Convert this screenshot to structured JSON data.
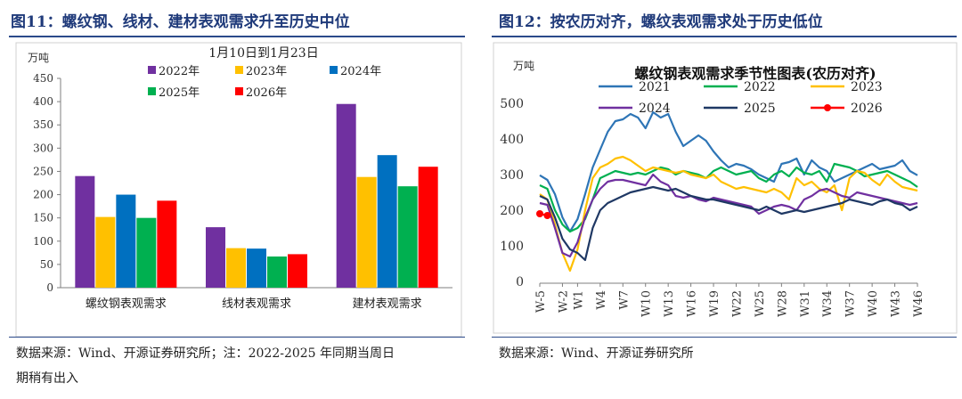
{
  "left_panel": {
    "figure_title": "图11：螺纹钢、线材、建材表观需求升至历史中位",
    "source_line1": "数据来源：Wind、开源证券研究所；注：2022-2025 年同期当周日",
    "source_line2": "期稍有出入"
  },
  "right_panel": {
    "figure_title": "图12：按农历对齐，螺纹表观需求处于历史低位",
    "source": "数据来源：Wind、开源证券研究所"
  },
  "chart_data": [
    {
      "type": "bar",
      "title": "1月10日到1月23日",
      "ylabel": "万吨",
      "ylim": [
        0,
        450
      ],
      "yticks": [
        0,
        50,
        100,
        150,
        200,
        250,
        300,
        350,
        400,
        450
      ],
      "categories": [
        "螺纹钢表观需求",
        "线材表观需求",
        "建材表观需求"
      ],
      "series": [
        {
          "name": "2022年",
          "color": "#7030a0",
          "values": [
            240,
            130,
            395
          ]
        },
        {
          "name": "2023年",
          "color": "#ffc000",
          "values": [
            152,
            85,
            238
          ]
        },
        {
          "name": "2024年",
          "color": "#0070c0",
          "values": [
            200,
            84,
            285
          ]
        },
        {
          "name": "2025年",
          "color": "#00b050",
          "values": [
            150,
            67,
            218
          ]
        },
        {
          "name": "2026年",
          "color": "#ff0000",
          "values": [
            187,
            72,
            260
          ]
        }
      ]
    },
    {
      "type": "line",
      "title": "螺纹钢表观需求季节性图表(农历对齐)",
      "ylabel": "万吨",
      "ylim": [
        0,
        500
      ],
      "yticks": [
        0,
        100,
        200,
        300,
        400,
        500
      ],
      "x": [
        "W-5",
        "W-4",
        "W-3",
        "W-2",
        "W-1",
        "W1",
        "W2",
        "W3",
        "W4",
        "W5",
        "W6",
        "W7",
        "W8",
        "W9",
        "W10",
        "W11",
        "W12",
        "W13",
        "W14",
        "W15",
        "W16",
        "W17",
        "W18",
        "W19",
        "W20",
        "W21",
        "W22",
        "W23",
        "W24",
        "W25",
        "W26",
        "W27",
        "W28",
        "W29",
        "W30",
        "W31",
        "W32",
        "W33",
        "W34",
        "W35",
        "W36",
        "W37",
        "W38",
        "W39",
        "W40",
        "W41",
        "W42",
        "W43",
        "W44",
        "W45",
        "W46"
      ],
      "xticks": [
        "W-5",
        "W-2",
        "W1",
        "W4",
        "W7",
        "W10",
        "W13",
        "W16",
        "W19",
        "W22",
        "W25",
        "W28",
        "W31",
        "W34",
        "W37",
        "W40",
        "W43",
        "W46"
      ],
      "series": [
        {
          "name": "2021",
          "color": "#2e75b6",
          "values": [
            298,
            285,
            245,
            180,
            140,
            175,
            245,
            320,
            370,
            420,
            450,
            455,
            470,
            460,
            430,
            475,
            460,
            470,
            420,
            380,
            395,
            410,
            395,
            365,
            340,
            320,
            330,
            325,
            315,
            300,
            290,
            280,
            330,
            335,
            345,
            300,
            340,
            320,
            310,
            280,
            290,
            300,
            310,
            320,
            330,
            315,
            320,
            325,
            340,
            310,
            298
          ]
        },
        {
          "name": "2022",
          "color": "#00b050",
          "values": [
            270,
            260,
            200,
            160,
            140,
            150,
            175,
            230,
            290,
            300,
            310,
            305,
            300,
            305,
            300,
            310,
            320,
            315,
            300,
            310,
            305,
            300,
            290,
            310,
            320,
            310,
            300,
            305,
            310,
            290,
            280,
            300,
            310,
            295,
            320,
            305,
            300,
            310,
            280,
            330,
            325,
            320,
            310,
            295,
            300,
            305,
            310,
            300,
            290,
            280,
            265
          ]
        },
        {
          "name": "2023",
          "color": "#ffc000",
          "values": [
            245,
            230,
            160,
            80,
            30,
            90,
            200,
            290,
            320,
            330,
            345,
            350,
            340,
            325,
            310,
            320,
            315,
            310,
            305,
            310,
            300,
            295,
            290,
            300,
            280,
            270,
            260,
            265,
            260,
            255,
            250,
            260,
            250,
            230,
            290,
            270,
            280,
            260,
            250,
            270,
            200,
            290,
            310,
            305,
            285,
            270,
            300,
            280,
            265,
            260,
            255
          ]
        },
        {
          "name": "2024",
          "color": "#7030a0",
          "values": [
            220,
            215,
            150,
            80,
            70,
            110,
            180,
            230,
            260,
            280,
            285,
            285,
            280,
            275,
            270,
            300,
            280,
            270,
            240,
            235,
            240,
            230,
            225,
            235,
            230,
            225,
            220,
            215,
            210,
            190,
            200,
            210,
            215,
            210,
            200,
            230,
            240,
            255,
            260,
            250,
            240,
            235,
            250,
            245,
            240,
            235,
            230,
            225,
            220,
            215,
            220
          ]
        },
        {
          "name": "2025",
          "color": "#1f3864",
          "values": [
            240,
            230,
            180,
            120,
            90,
            80,
            60,
            150,
            200,
            220,
            230,
            240,
            250,
            255,
            260,
            265,
            260,
            255,
            260,
            250,
            240,
            235,
            230,
            230,
            225,
            220,
            215,
            210,
            205,
            200,
            210,
            200,
            190,
            195,
            200,
            195,
            200,
            205,
            210,
            215,
            220,
            230,
            225,
            220,
            215,
            225,
            230,
            220,
            215,
            200,
            210
          ]
        },
        {
          "name": "2026",
          "color": "#ff0000",
          "values": [
            190,
            185,
            null,
            null,
            null,
            null,
            null,
            null,
            null,
            null,
            null,
            null,
            null,
            null,
            null,
            null,
            null,
            null,
            null,
            null,
            null,
            null,
            null,
            null,
            null,
            null,
            null,
            null,
            null,
            null,
            null,
            null,
            null,
            null,
            null,
            null,
            null,
            null,
            null,
            null,
            null,
            null,
            null,
            null,
            null,
            null,
            null,
            null,
            null,
            null,
            null
          ],
          "markers": true
        }
      ]
    }
  ]
}
